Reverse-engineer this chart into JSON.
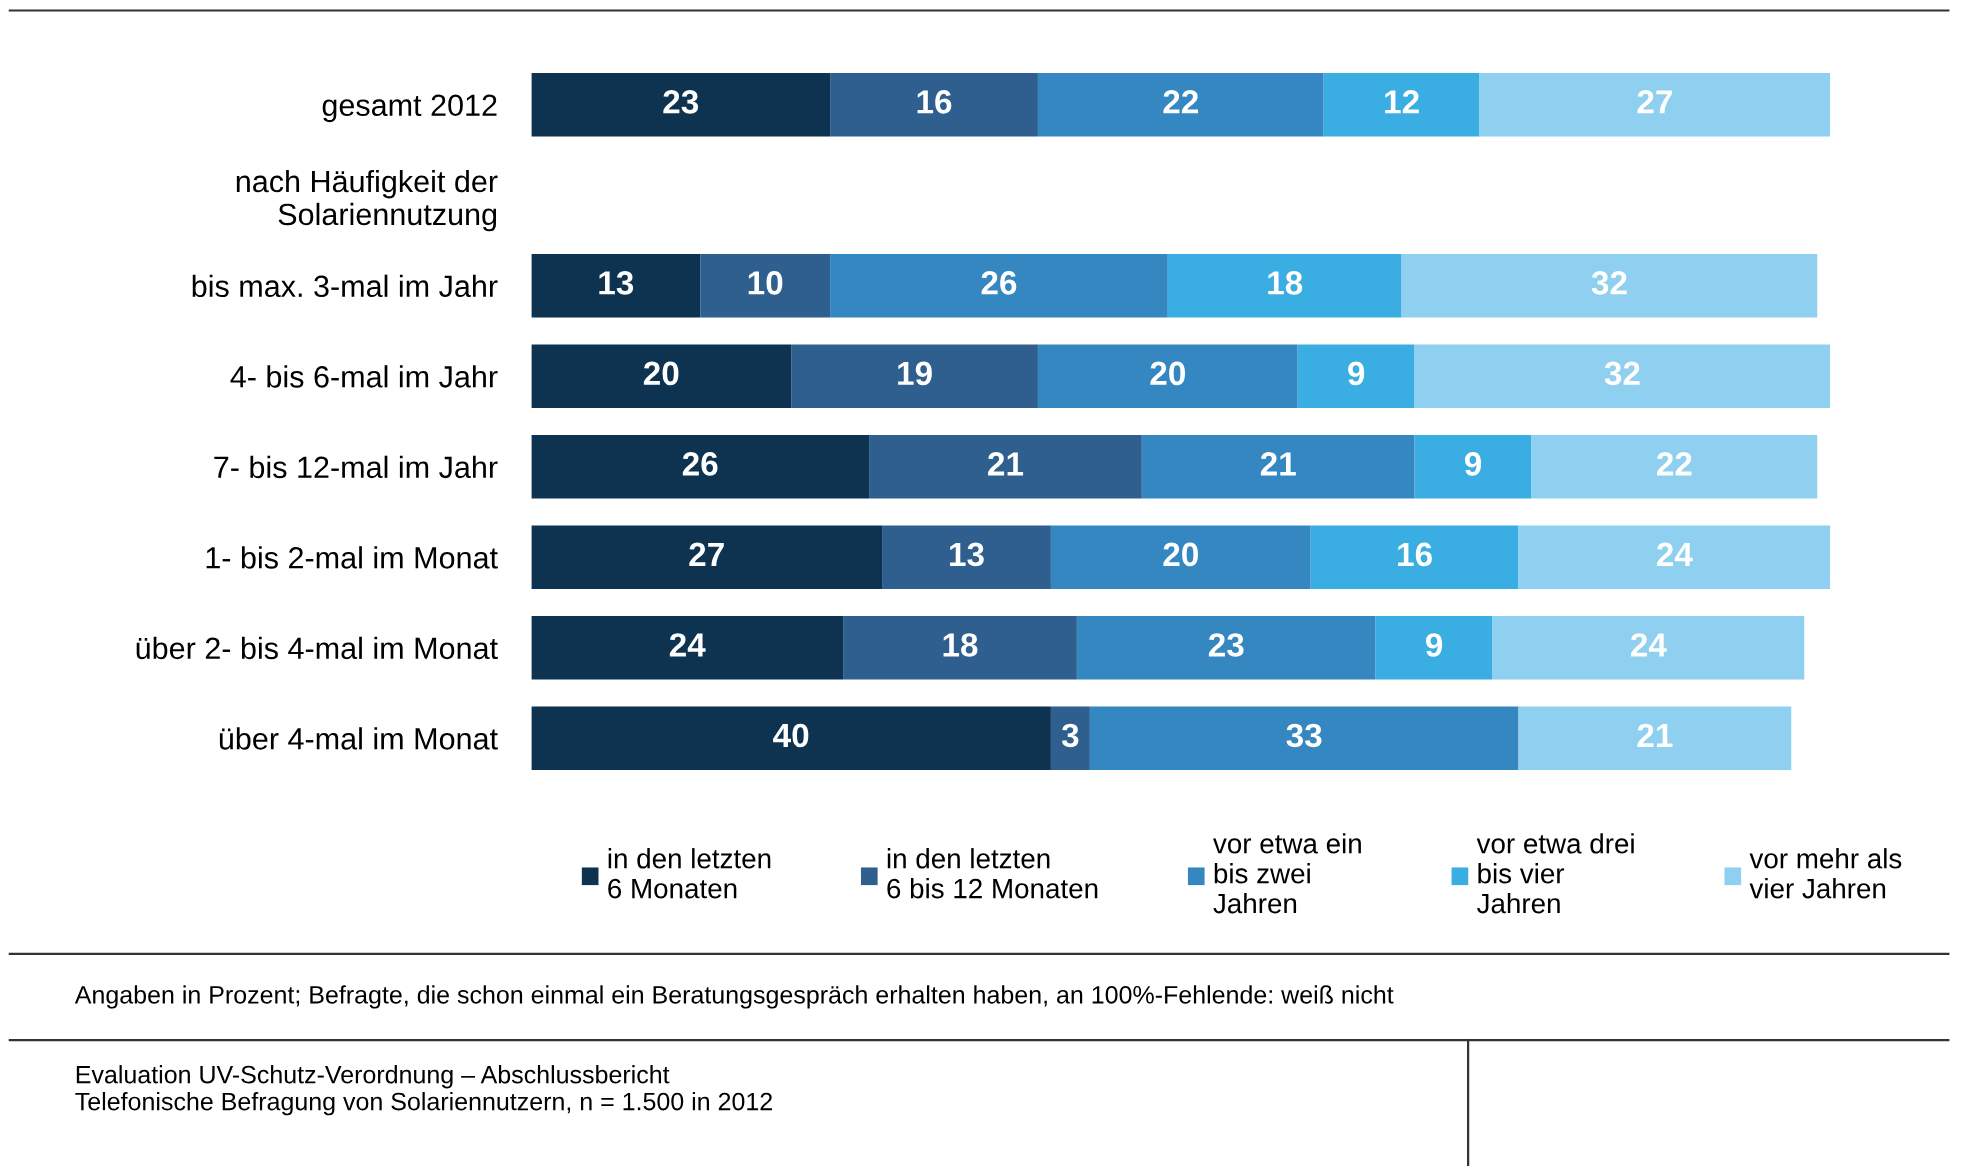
{
  "chart_data": {
    "type": "bar",
    "orientation": "horizontal",
    "stacked": true,
    "data_labels": true,
    "legend": "bottom",
    "grid": false,
    "tick_labels": "y",
    "categories": [
      "gesamt 2012",
      "nach Häufigkeit der\nSolariennutzung",
      "bis max. 3-mal im Jahr",
      "4- bis 6-mal im Jahr",
      "7- bis 12-mal im Jahr",
      "1- bis 2-mal im Monat",
      "über 2- bis 4-mal im Monat",
      "über 4-mal im Monat"
    ],
    "xlim": [
      0,
      100
    ],
    "series": [
      {
        "name": "in den letzten\n6 Monaten",
        "color": "#0d3350",
        "values": [
          23,
          null,
          13,
          20,
          26,
          27,
          24,
          40
        ]
      },
      {
        "name": "in den letzten\n6 bis 12 Monaten",
        "color": "#2f5f8f",
        "values": [
          16,
          null,
          10,
          19,
          21,
          13,
          18,
          3
        ]
      },
      {
        "name": "vor etwa ein\nbis zwei\nJahren",
        "color": "#3587c2",
        "values": [
          22,
          null,
          26,
          20,
          21,
          20,
          23,
          33
        ]
      },
      {
        "name": "vor etwa drei\nbis vier\nJahren",
        "color": "#3aade3",
        "values": [
          12,
          null,
          18,
          9,
          9,
          16,
          9,
          null
        ]
      },
      {
        "name": "vor mehr als\nvier Jahren",
        "color": "#8fcfef",
        "values": [
          27,
          null,
          32,
          32,
          22,
          24,
          24,
          21
        ]
      }
    ],
    "annotations": [
      "Angaben in Prozent; Befragte, die schon einmal ein Beratungsgespräch erhalten haben, an 100%-Fehlende: weiß nicht",
      "Evaluation UV-Schutz-Verordnung – Abschlussbericht\nTelefonische Befragung von Solariennutzern, n = 1.500 in 2012"
    ]
  }
}
